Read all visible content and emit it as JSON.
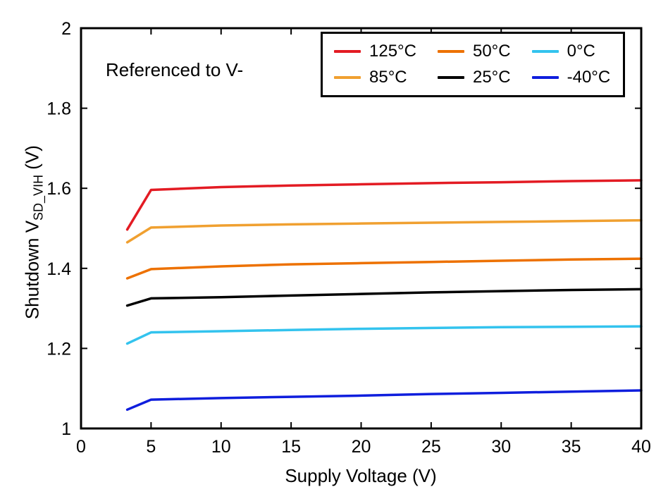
{
  "figure": {
    "annotation": "Referenced to V-",
    "xlabel": "Supply Voltage (V)",
    "ylabel_main": "Shutdown V",
    "ylabel_sub": "SD_VIH",
    "ylabel_unit": " (V)"
  },
  "legend": {
    "position": "top-right",
    "entries": [
      {
        "label": "125°C",
        "color": "#e31b23"
      },
      {
        "label": "50°C",
        "color": "#ed7100"
      },
      {
        "label": "0°C",
        "color": "#33c3ee"
      },
      {
        "label": "85°C",
        "color": "#f0a030"
      },
      {
        "label": "25°C",
        "color": "#000000"
      },
      {
        "label": "-40°C",
        "color": "#0f1edd"
      }
    ]
  },
  "chart_data": {
    "type": "line",
    "title": "",
    "xlabel": "Supply Voltage (V)",
    "ylabel": "Shutdown V_SD_VIH (V)",
    "annotation": "Referenced to V-",
    "grid": false,
    "legend_position": "top-right",
    "xlim": [
      0,
      40
    ],
    "ylim": [
      1,
      2
    ],
    "xticks": [
      0,
      5,
      10,
      15,
      20,
      25,
      30,
      35,
      40
    ],
    "yticks": [
      1,
      1.2,
      1.4,
      1.6,
      1.8,
      2
    ],
    "x": [
      3.3,
      5,
      10,
      15,
      20,
      25,
      30,
      35,
      40
    ],
    "series": [
      {
        "name": "125C",
        "label": "125°C",
        "color": "#e31b23",
        "values": [
          1.497,
          1.596,
          1.603,
          1.607,
          1.61,
          1.613,
          1.615,
          1.618,
          1.62
        ]
      },
      {
        "name": "85C",
        "label": "85°C",
        "color": "#f0a030",
        "values": [
          1.465,
          1.502,
          1.507,
          1.51,
          1.512,
          1.514,
          1.516,
          1.518,
          1.52
        ]
      },
      {
        "name": "50C",
        "label": "50°C",
        "color": "#ed7100",
        "values": [
          1.375,
          1.398,
          1.405,
          1.41,
          1.413,
          1.416,
          1.419,
          1.422,
          1.424
        ]
      },
      {
        "name": "25C",
        "label": "25°C",
        "color": "#000000",
        "values": [
          1.307,
          1.325,
          1.328,
          1.332,
          1.336,
          1.34,
          1.343,
          1.346,
          1.348
        ]
      },
      {
        "name": "0C",
        "label": "0°C",
        "color": "#33c3ee",
        "values": [
          1.212,
          1.24,
          1.243,
          1.246,
          1.249,
          1.251,
          1.253,
          1.254,
          1.255
        ]
      },
      {
        "name": "minus40C",
        "label": "-40°C",
        "color": "#0f1edd",
        "values": [
          1.047,
          1.072,
          1.076,
          1.079,
          1.082,
          1.086,
          1.089,
          1.092,
          1.095
        ]
      }
    ]
  }
}
